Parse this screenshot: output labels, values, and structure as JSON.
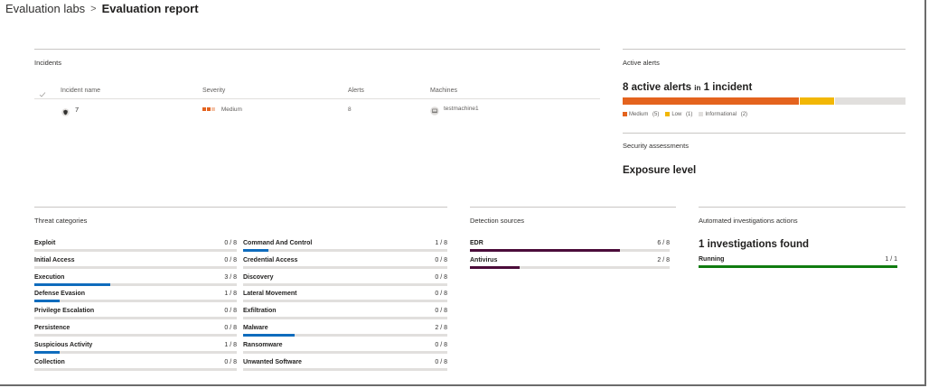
{
  "breadcrumb": {
    "parent": "Evaluation labs",
    "separator": ">",
    "current": "Evaluation report"
  },
  "incidents": {
    "title": "Incidents",
    "headers": {
      "name": "Incident name",
      "severity": "Severity",
      "alerts": "Alerts",
      "machines": "Machines"
    },
    "rows": [
      {
        "name": "7",
        "severity": "Medium",
        "alerts": "8",
        "machine": "testmachine1"
      }
    ]
  },
  "active_alerts": {
    "title": "Active alerts",
    "count": "8 active alerts",
    "in": "in",
    "incident_count": "1 incident",
    "segments": [
      {
        "label": "Medium",
        "count": "(5)",
        "value": 5,
        "color": "#e4631e"
      },
      {
        "label": "Low",
        "count": "(1)",
        "value": 1,
        "color": "#f2b705"
      },
      {
        "label": "Informational",
        "count": "(2)",
        "value": 2,
        "color": "#e1dfdd"
      }
    ]
  },
  "security": {
    "title": "Security assessments",
    "subtitle": "Exposure level"
  },
  "threats": {
    "title": "Threat categories",
    "color": "#0f6cbd",
    "left": [
      {
        "name": "Exploit",
        "count": "0 / 8",
        "value": 0
      },
      {
        "name": "Initial Access",
        "count": "0 / 8",
        "value": 0
      },
      {
        "name": "Execution",
        "count": "3 / 8",
        "value": 0.375
      },
      {
        "name": "Defense Evasion",
        "count": "1 / 8",
        "value": 0.125
      },
      {
        "name": "Privilege Escalation",
        "count": "0 / 8",
        "value": 0
      },
      {
        "name": "Persistence",
        "count": "0 / 8",
        "value": 0
      },
      {
        "name": "Suspicious Activity",
        "count": "1 / 8",
        "value": 0.125
      },
      {
        "name": "Collection",
        "count": "0 / 8",
        "value": 0
      }
    ],
    "right": [
      {
        "name": "Command And Control",
        "count": "1 / 8",
        "value": 0.125
      },
      {
        "name": "Credential Access",
        "count": "0 / 8",
        "value": 0
      },
      {
        "name": "Discovery",
        "count": "0 / 8",
        "value": 0
      },
      {
        "name": "Lateral Movement",
        "count": "0 / 8",
        "value": 0
      },
      {
        "name": "Exfiltration",
        "count": "0 / 8",
        "value": 0
      },
      {
        "name": "Malware",
        "count": "2 / 8",
        "value": 0.25
      },
      {
        "name": "Ransomware",
        "count": "0 / 8",
        "value": 0
      },
      {
        "name": "Unwanted Software",
        "count": "0 / 8",
        "value": 0
      }
    ]
  },
  "detection": {
    "title": "Detection sources",
    "color": "#4b0c3a",
    "items": [
      {
        "name": "EDR",
        "count": "6 / 8",
        "value": 0.75
      },
      {
        "name": "Antivirus",
        "count": "2 / 8",
        "value": 0.25
      }
    ]
  },
  "automated": {
    "title": "Automated investigations actions",
    "headline": "1 investigations found",
    "color": "#107c10",
    "items": [
      {
        "name": "Running",
        "count": "1 / 1",
        "value": 1
      }
    ]
  }
}
